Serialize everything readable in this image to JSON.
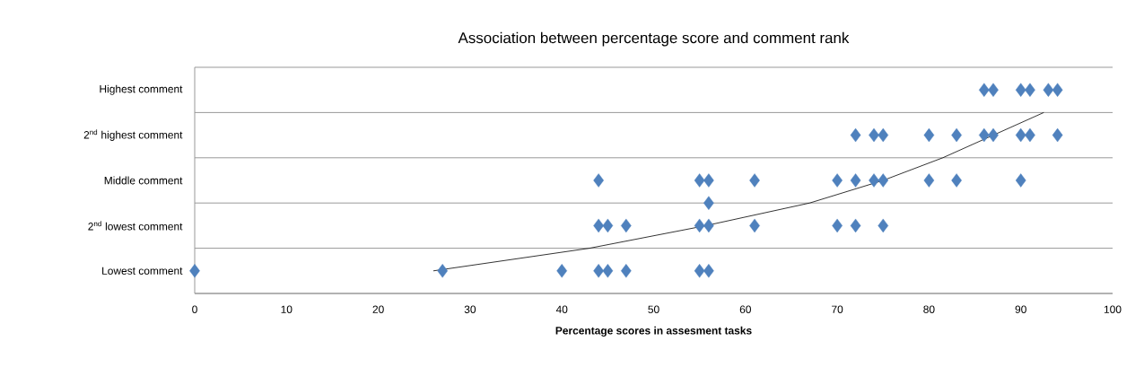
{
  "chart_data": {
    "type": "scatter",
    "orientation": "horizontal",
    "title": "Association between percentage score and comment rank",
    "xlabel": "**Percentage scores in assesment tasks**",
    "categories": [
      "Highest comment",
      null,
      "2$^{nd}$ highest comment",
      null,
      "Middle comment",
      null,
      "2$^{nd}$ lowest comment",
      null,
      "Lowest comment"
    ],
    "xlim": [
      0,
      100
    ],
    "xticks": [
      0,
      10,
      20,
      30,
      40,
      50,
      60,
      70,
      80,
      90,
      100
    ],
    "grid": "y",
    "marker": "diamond",
    "series": [
      {
        "color": "#4f81bd",
        "values": [
          86,
          null,
          72,
          null,
          44,
          56,
          44,
          null,
          0
        ]
      },
      {
        "color": "#4f81bd",
        "values": [
          87,
          null,
          74,
          null,
          55,
          null,
          45,
          null,
          27
        ]
      },
      {
        "color": "#4f81bd",
        "values": [
          90,
          null,
          75,
          null,
          56,
          null,
          47,
          null,
          40
        ]
      },
      {
        "color": "#4f81bd",
        "values": [
          91,
          null,
          80,
          null,
          61,
          null,
          55,
          null,
          44
        ]
      },
      {
        "color": "#4f81bd",
        "values": [
          93,
          null,
          83,
          null,
          70,
          null,
          56,
          null,
          45
        ]
      },
      {
        "color": "#4f81bd",
        "values": [
          94,
          null,
          86,
          null,
          72,
          null,
          61,
          null,
          47
        ]
      },
      {
        "color": "#4f81bd",
        "values": [
          null,
          null,
          87,
          null,
          74,
          null,
          70,
          null,
          55
        ]
      },
      {
        "color": "#4f81bd",
        "values": [
          null,
          null,
          90,
          null,
          75,
          null,
          72,
          null,
          56
        ]
      },
      {
        "color": "#4f81bd",
        "values": [
          null,
          null,
          91,
          null,
          80,
          null,
          75,
          null,
          null
        ]
      },
      {
        "color": "#4f81bd",
        "values": [
          null,
          null,
          94,
          null,
          83,
          null,
          null,
          null,
          null
        ]
      },
      {
        "color": "#4f81bd",
        "values": [
          null,
          null,
          null,
          null,
          90,
          null,
          null,
          null,
          null
        ]
      },
      {
        "type": "line",
        "color": "#000000",
        "marker": "none",
        "values": [
          null,
          92.5,
          87,
          81.5,
          75,
          67,
          55.7,
          43,
          26
        ]
      }
    ]
  }
}
